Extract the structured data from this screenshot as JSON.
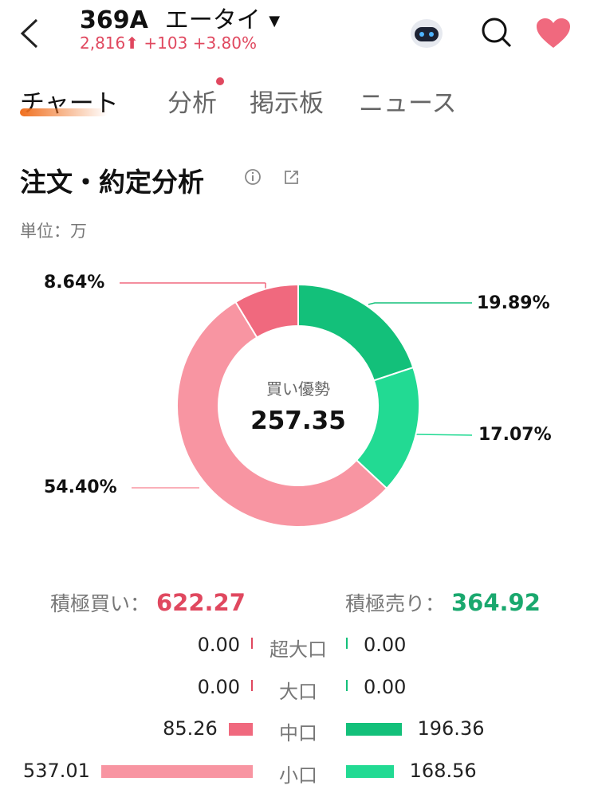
{
  "header": {
    "code": "369A",
    "name": "エータイ",
    "price": "2,816",
    "change": "+103",
    "change_pct": "+3.80%",
    "up_color": "#e0485f"
  },
  "tabs": [
    {
      "label": "チャート",
      "active": true
    },
    {
      "label": "分析",
      "badge": true
    },
    {
      "label": "掲示板"
    },
    {
      "label": "ニュース"
    }
  ],
  "section": {
    "title": "注文・約定分析",
    "unit": "単位：万"
  },
  "chart_data": {
    "type": "pie",
    "donut": true,
    "center_label": "買い優勢",
    "center_value": "257.35",
    "slices": [
      {
        "label": "19.89%",
        "value": 19.89,
        "color": "#13c07a"
      },
      {
        "label": "17.07%",
        "value": 17.07,
        "color": "#22da93"
      },
      {
        "label": "54.40%",
        "value": 54.4,
        "color": "#f895a2"
      },
      {
        "label": "8.64%",
        "value": 8.64,
        "color": "#f0697e"
      }
    ]
  },
  "totals": {
    "buy_label": "積極買い：",
    "buy_value": "622.27",
    "sell_label": "積極売り：",
    "sell_value": "364.92",
    "buy_color": "#e0485f",
    "sell_color": "#1aa86e"
  },
  "rows": [
    {
      "category": "超大口",
      "buy": "0.00",
      "sell": "0.00",
      "buy_v": 0,
      "sell_v": 0
    },
    {
      "category": "大口",
      "buy": "0.00",
      "sell": "0.00",
      "buy_v": 0,
      "sell_v": 0
    },
    {
      "category": "中口",
      "buy": "85.26",
      "sell": "196.36",
      "buy_v": 85.26,
      "sell_v": 196.36,
      "buy_color": "#f0697e",
      "sell_color": "#13c07a"
    },
    {
      "category": "小口",
      "buy": "537.01",
      "sell": "168.56",
      "buy_v": 537.01,
      "sell_v": 168.56,
      "buy_color": "#f895a2",
      "sell_color": "#22da93"
    }
  ]
}
